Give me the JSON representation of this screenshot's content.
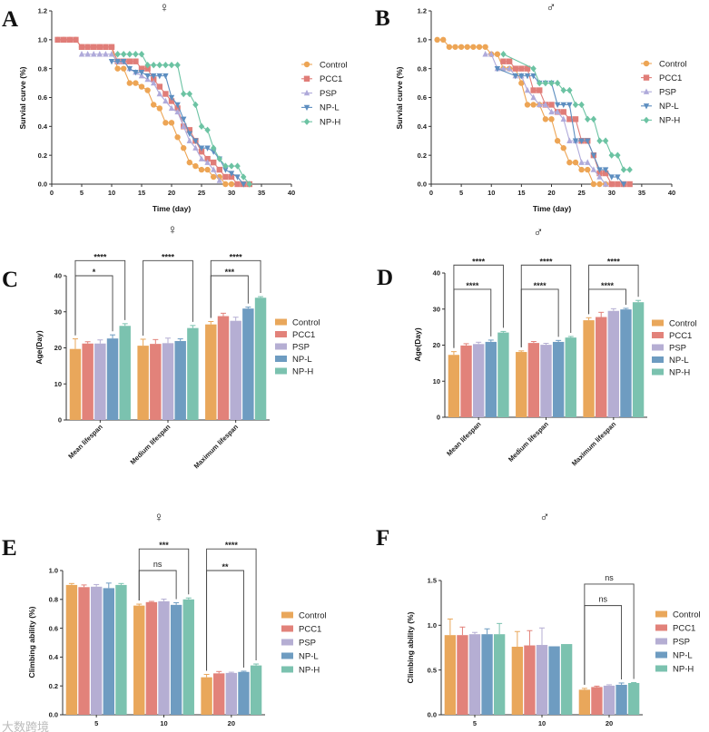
{
  "groups": [
    "Control",
    "PCC1",
    "PSP",
    "NP-L",
    "NP-H"
  ],
  "colors": {
    "Control": "#E9A75B",
    "PCC1": "#E2827A",
    "PSP": "#B5AED3",
    "NP-L": "#6E9CC1",
    "NP-H": "#7BC2AF"
  },
  "line_colors": {
    "Control": "#EDA555",
    "PCC1": "#E07D78",
    "PSP": "#AFAADA",
    "NP-L": "#5D8EC0",
    "NP-H": "#6CC3A3"
  },
  "watermark": "大数跨境",
  "chart_data": [
    {
      "panel": "A",
      "type": "line",
      "title": "♀",
      "xlabel": "Time (day)",
      "ylabel": "Survial curve (%)",
      "xlim": [
        0,
        40
      ],
      "ylim": [
        0,
        1.2
      ],
      "xticks": [
        "0",
        "5",
        "10",
        "15",
        "20",
        "25",
        "30",
        "35",
        "40"
      ],
      "yticks": [
        "0.0",
        "0.2",
        "0.4",
        "0.6",
        "0.8",
        "1.0",
        "1.2"
      ],
      "legend": "right",
      "series": [
        {
          "name": "Control",
          "x": [
            1,
            2,
            3,
            4,
            5,
            6,
            7,
            8,
            9,
            10,
            11,
            12,
            13,
            14,
            15,
            16,
            17,
            18,
            19,
            20,
            21,
            22,
            23,
            24,
            25,
            26,
            27,
            28,
            29,
            30
          ],
          "y": [
            1,
            1,
            1,
            1,
            0.95,
            0.95,
            0.95,
            0.95,
            0.95,
            0.95,
            0.8,
            0.8,
            0.7,
            0.7,
            0.675,
            0.65,
            0.55,
            0.525,
            0.425,
            0.425,
            0.325,
            0.25,
            0.15,
            0.125,
            0.1,
            0.1,
            0.05,
            0.05,
            0,
            0
          ]
        },
        {
          "name": "PCC1",
          "x": [
            1,
            2,
            3,
            4,
            5,
            6,
            7,
            8,
            9,
            10,
            11,
            12,
            13,
            14,
            15,
            16,
            17,
            18,
            19,
            20,
            21,
            22,
            23,
            24,
            25,
            26,
            27,
            28,
            29,
            30,
            31,
            32,
            33
          ],
          "y": [
            1,
            1,
            1,
            1,
            0.95,
            0.95,
            0.95,
            0.95,
            0.95,
            0.95,
            0.85,
            0.85,
            0.85,
            0.85,
            0.8,
            0.8,
            0.725,
            0.675,
            0.625,
            0.575,
            0.525,
            0.4,
            0.375,
            0.3,
            0.225,
            0.175,
            0.15,
            0.1,
            0.05,
            0.05,
            0,
            0,
            0
          ]
        },
        {
          "name": "PSP",
          "x": [
            5,
            6,
            7,
            8,
            9,
            10,
            11,
            12,
            13,
            14,
            15,
            16,
            17,
            18,
            19,
            20,
            21,
            22,
            23,
            24,
            25,
            26,
            27,
            28
          ],
          "y": [
            0.9,
            0.9,
            0.9,
            0.9,
            0.9,
            0.9,
            0.85,
            0.85,
            0.8,
            0.775,
            0.75,
            0.725,
            0.7,
            0.625,
            0.575,
            0.525,
            0.5,
            0.4,
            0.3,
            0.25,
            0.175,
            0.15,
            0.1,
            0.025
          ]
        },
        {
          "name": "NP-L",
          "x": [
            10,
            11,
            12,
            13,
            14,
            15,
            16,
            17,
            18,
            19,
            20,
            21,
            22,
            23,
            24,
            25,
            26,
            27,
            28,
            29,
            30,
            31,
            32
          ],
          "y": [
            0.85,
            0.85,
            0.85,
            0.8,
            0.775,
            0.775,
            0.75,
            0.75,
            0.75,
            0.75,
            0.6,
            0.55,
            0.45,
            0.35,
            0.3,
            0.25,
            0.25,
            0.225,
            0.175,
            0.1,
            0.075,
            0.05,
            0
          ]
        },
        {
          "name": "NP-H",
          "x": [
            11,
            12,
            13,
            14,
            15,
            16,
            17,
            18,
            19,
            20,
            21,
            22,
            23,
            24,
            25,
            26,
            27,
            28,
            29,
            30,
            31,
            32,
            33
          ],
          "y": [
            0.9,
            0.9,
            0.9,
            0.9,
            0.9,
            0.825,
            0.825,
            0.825,
            0.825,
            0.825,
            0.825,
            0.625,
            0.625,
            0.55,
            0.4,
            0.375,
            0.25,
            0.175,
            0.125,
            0.125,
            0.125,
            0.05,
            0
          ]
        }
      ]
    },
    {
      "panel": "B",
      "type": "line",
      "title": "♂",
      "xlabel": "Time (day)",
      "ylabel": "Survial curve (%)",
      "xlim": [
        0,
        40
      ],
      "ylim": [
        0,
        1.2
      ],
      "xticks": [
        "0",
        "5",
        "10",
        "15",
        "20",
        "25",
        "30",
        "35",
        "40"
      ],
      "yticks": [
        "0.0",
        "0.2",
        "0.4",
        "0.6",
        "0.8",
        "1.0",
        "1.2"
      ],
      "legend": "right",
      "series": [
        {
          "name": "Control",
          "x": [
            1,
            2,
            3,
            4,
            5,
            6,
            7,
            8,
            9,
            10,
            11,
            12,
            13,
            14,
            15,
            16,
            17,
            18,
            19,
            20,
            21,
            22,
            23,
            24,
            25,
            26,
            27,
            28,
            29,
            30
          ],
          "y": [
            1,
            1,
            0.95,
            0.95,
            0.95,
            0.95,
            0.95,
            0.95,
            0.95,
            0.9,
            0.9,
            0.8,
            0.8,
            0.8,
            0.7,
            0.55,
            0.55,
            0.55,
            0.45,
            0.45,
            0.3,
            0.25,
            0.15,
            0.15,
            0.1,
            0.1,
            0,
            0,
            0,
            0
          ]
        },
        {
          "name": "PCC1",
          "x": [
            12,
            13,
            14,
            15,
            16,
            17,
            18,
            19,
            20,
            21,
            22,
            23,
            24,
            25,
            26,
            27,
            28,
            29,
            30,
            31,
            32,
            33
          ],
          "y": [
            0.85,
            0.85,
            0.8,
            0.8,
            0.8,
            0.65,
            0.65,
            0.55,
            0.55,
            0.5,
            0.5,
            0.45,
            0.45,
            0.3,
            0.3,
            0.2,
            0.075,
            0.075,
            0,
            0,
            0,
            0
          ]
        },
        {
          "name": "PSP",
          "x": [
            9,
            10,
            11,
            12,
            13,
            14,
            15,
            16,
            17,
            18,
            19,
            20,
            21,
            22,
            23,
            24,
            25,
            26,
            27,
            28,
            29
          ],
          "y": [
            0.9,
            0.9,
            0.8,
            0.8,
            0.8,
            0.75,
            0.75,
            0.65,
            0.6,
            0.55,
            0.55,
            0.5,
            0.5,
            0.45,
            0.3,
            0.3,
            0.15,
            0.15,
            0.1,
            0.05,
            0
          ]
        },
        {
          "name": "NP-L",
          "x": [
            11,
            14,
            15,
            16,
            17,
            18,
            19,
            20,
            21,
            22,
            23,
            24,
            25,
            26,
            27,
            28,
            29,
            30,
            31,
            32
          ],
          "y": [
            0.8,
            0.75,
            0.75,
            0.75,
            0.75,
            0.7,
            0.7,
            0.7,
            0.55,
            0.55,
            0.55,
            0.3,
            0.3,
            0.3,
            0.2,
            0.1,
            0.1,
            0.05,
            0.05,
            0
          ]
        },
        {
          "name": "NP-H",
          "x": [
            12,
            17,
            18,
            19,
            20,
            21,
            22,
            23,
            24,
            25,
            26,
            27,
            28,
            29,
            30,
            31,
            32,
            33
          ],
          "y": [
            0.9,
            0.8,
            0.7,
            0.7,
            0.7,
            0.7,
            0.65,
            0.65,
            0.55,
            0.55,
            0.45,
            0.45,
            0.3,
            0.3,
            0.2,
            0.2,
            0.1,
            0.1
          ]
        }
      ]
    },
    {
      "panel": "C",
      "type": "bar",
      "title": "♀",
      "ylabel": "Age(Day)",
      "xlabel": "",
      "ylim": [
        0,
        40
      ],
      "yticks": [
        "0",
        "10",
        "20",
        "30",
        "40"
      ],
      "categories": [
        "Mean lifespan",
        "Medium lifespan",
        "Maximum lifespan"
      ],
      "series": [
        {
          "name": "Control",
          "values": [
            19.7,
            20.6,
            26.5
          ],
          "errors": [
            2.8,
            1.8,
            0.8
          ]
        },
        {
          "name": "PCC1",
          "values": [
            21.2,
            21.1,
            28.8
          ],
          "errors": [
            0.5,
            1.2,
            0.8
          ]
        },
        {
          "name": "PSP",
          "values": [
            21.2,
            21.3,
            27.5
          ],
          "errors": [
            1.0,
            1.4,
            1.0
          ]
        },
        {
          "name": "NP-L",
          "values": [
            22.6,
            21.9,
            30.9
          ],
          "errors": [
            1.0,
            0.6,
            0.4
          ]
        },
        {
          "name": "NP-H",
          "values": [
            26.1,
            25.5,
            33.9
          ],
          "errors": [
            0.6,
            0.7,
            0.3
          ]
        }
      ],
      "comparisons": [
        {
          "category": 0,
          "from": "Control",
          "to": "NP-L",
          "label": "*"
        },
        {
          "category": 0,
          "from": "Control",
          "to": "NP-H",
          "label": "****"
        },
        {
          "category": 1,
          "from": "Control",
          "to": "NP-H",
          "label": "****"
        },
        {
          "category": 2,
          "from": "Control",
          "to": "NP-L",
          "label": "***"
        },
        {
          "category": 2,
          "from": "Control",
          "to": "NP-H",
          "label": "****"
        }
      ],
      "legend": "right"
    },
    {
      "panel": "D",
      "type": "bar",
      "title": "♂",
      "ylabel": "Age(Day)",
      "xlabel": "",
      "ylim": [
        0,
        40
      ],
      "yticks": [
        "0",
        "10",
        "20",
        "30",
        "40"
      ],
      "categories": [
        "Mean lifespan",
        "Medium  lifespan",
        "Maximum  lifespan"
      ],
      "series": [
        {
          "name": "Control",
          "values": [
            17.3,
            18.1,
            26.9
          ],
          "errors": [
            0.9,
            0.3,
            0.7
          ]
        },
        {
          "name": "PCC1",
          "values": [
            19.9,
            20.6,
            27.8
          ],
          "errors": [
            0.5,
            0.4,
            1.3
          ]
        },
        {
          "name": "PSP",
          "values": [
            20.3,
            20.1,
            29.5
          ],
          "errors": [
            0.5,
            0.4,
            0.6
          ]
        },
        {
          "name": "NP-L",
          "values": [
            20.9,
            20.9,
            29.9
          ],
          "errors": [
            0.5,
            0.4,
            0.3
          ]
        },
        {
          "name": "NP-H",
          "values": [
            23.5,
            22.1,
            31.9
          ],
          "errors": [
            0.3,
            0.3,
            0.5
          ]
        }
      ],
      "comparisons": [
        {
          "category": 0,
          "from": "Control",
          "to": "NP-L",
          "label": "****"
        },
        {
          "category": 0,
          "from": "Control",
          "to": "NP-H",
          "label": "****"
        },
        {
          "category": 1,
          "from": "Control",
          "to": "NP-L",
          "label": "****"
        },
        {
          "category": 1,
          "from": "Control",
          "to": "NP-H",
          "label": "****"
        },
        {
          "category": 2,
          "from": "Control",
          "to": "NP-L",
          "label": "****"
        },
        {
          "category": 2,
          "from": "Control",
          "to": "NP-H",
          "label": "****"
        }
      ],
      "legend": "right"
    },
    {
      "panel": "E",
      "type": "bar",
      "title": "♀",
      "ylabel": "Climbing ability (%)",
      "xlabel": "",
      "ylim": [
        0,
        1.0
      ],
      "yticks": [
        "0.0",
        "0.2",
        "0.4",
        "0.6",
        "0.8",
        "1.0"
      ],
      "categories": [
        "5",
        "10",
        "20"
      ],
      "series": [
        {
          "name": "Control",
          "values": [
            0.9,
            0.757,
            0.26
          ],
          "errors": [
            0.01,
            0.01,
            0.02
          ]
        },
        {
          "name": "PCC1",
          "values": [
            0.885,
            0.781,
            0.287
          ],
          "errors": [
            0.015,
            0.005,
            0.013
          ]
        },
        {
          "name": "PSP",
          "values": [
            0.888,
            0.787,
            0.29
          ],
          "errors": [
            0.015,
            0.015,
            0.005
          ]
        },
        {
          "name": "NP-L",
          "values": [
            0.878,
            0.762,
            0.297
          ],
          "errors": [
            0.035,
            0.015,
            0.005
          ]
        },
        {
          "name": "NP-H",
          "values": [
            0.9,
            0.8,
            0.342
          ],
          "errors": [
            0.01,
            0.01,
            0.01
          ]
        }
      ],
      "comparisons": [
        {
          "category": 1,
          "from": "Control",
          "to": "NP-L",
          "label": "ns"
        },
        {
          "category": 1,
          "from": "Control",
          "to": "NP-H",
          "label": "***"
        },
        {
          "category": 2,
          "from": "Control",
          "to": "NP-L",
          "label": "**"
        },
        {
          "category": 2,
          "from": "Control",
          "to": "NP-H",
          "label": "****"
        }
      ],
      "legend": "right"
    },
    {
      "panel": "F",
      "type": "bar",
      "title": "♂",
      "ylabel": "Climbing ability (%)",
      "xlabel": "",
      "ylim": [
        0,
        1.5
      ],
      "yticks": [
        "0.0",
        "0.5",
        "1.0",
        "1.5"
      ],
      "categories": [
        "5",
        "10",
        "20"
      ],
      "series": [
        {
          "name": "Control",
          "values": [
            0.89,
            0.76,
            0.28
          ],
          "errors": [
            0.18,
            0.17,
            0.015
          ]
        },
        {
          "name": "PCC1",
          "values": [
            0.89,
            0.775,
            0.31
          ],
          "errors": [
            0.09,
            0.165,
            0.01
          ]
        },
        {
          "name": "PSP",
          "values": [
            0.9,
            0.78,
            0.325
          ],
          "errors": [
            0.02,
            0.19,
            0.01
          ]
        },
        {
          "name": "NP-L",
          "values": [
            0.9,
            0.765,
            0.335
          ],
          "errors": [
            0.06,
            0,
            0.02
          ]
        },
        {
          "name": "NP-H",
          "values": [
            0.9,
            0.79,
            0.355
          ],
          "errors": [
            0.12,
            0,
            0.005
          ]
        }
      ],
      "comparisons": [
        {
          "category": 2,
          "from": "Control",
          "to": "NP-L",
          "label": "ns"
        },
        {
          "category": 2,
          "from": "Control",
          "to": "NP-H",
          "label": "ns"
        }
      ],
      "legend": "right"
    }
  ]
}
